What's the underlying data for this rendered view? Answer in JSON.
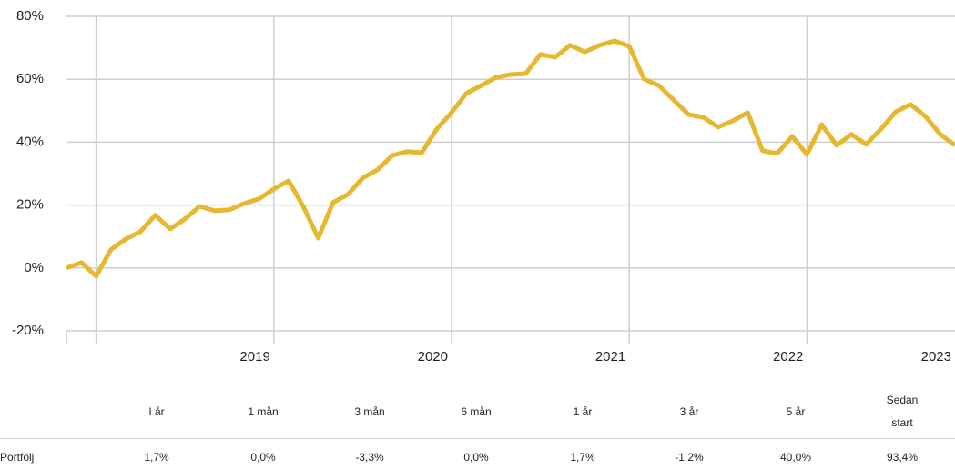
{
  "chart_data": {
    "type": "line",
    "x": [
      2017.833,
      2017.917,
      2018,
      2018.083,
      2018.167,
      2018.25,
      2018.333,
      2018.417,
      2018.5,
      2018.583,
      2018.667,
      2018.75,
      2018.833,
      2018.917,
      2019,
      2019.083,
      2019.167,
      2019.25,
      2019.333,
      2019.417,
      2019.5,
      2019.583,
      2019.667,
      2019.75,
      2019.833,
      2019.917,
      2020,
      2020.083,
      2020.167,
      2020.25,
      2020.333,
      2020.417,
      2020.5,
      2020.583,
      2020.667,
      2020.75,
      2020.833,
      2020.917,
      2021,
      2021.083,
      2021.167,
      2021.25,
      2021.333,
      2021.417,
      2021.5,
      2021.583,
      2021.667,
      2021.75,
      2021.833,
      2021.917,
      2022,
      2022.083,
      2022.167,
      2022.25,
      2022.333,
      2022.417,
      2022.5,
      2022.583,
      2022.667,
      2022.75,
      2022.833
    ],
    "series": [
      {
        "color": "#e6b830",
        "values": [
          0,
          1.7,
          -2.6,
          5.8,
          9.2,
          11.6,
          16.8,
          12.4,
          15.6,
          19.6,
          18.2,
          18.5,
          20.5,
          22,
          25.1,
          27.7,
          19.4,
          9.5,
          20.8,
          23.4,
          28.6,
          31.2,
          35.8,
          37,
          36.7,
          44.2,
          49.4,
          55.5,
          58,
          60.6,
          61.5,
          61.8,
          67.9,
          67,
          70.8,
          68.7,
          70.8,
          72.2,
          70.5,
          60.1,
          58,
          53.4,
          48.8,
          47.9,
          44.8,
          46.8,
          49.4,
          37.3,
          36.4,
          41.9,
          36.1,
          45.6,
          39,
          42.5,
          39.3,
          44.2,
          49.7,
          52,
          48.2,
          42.5,
          39
        ]
      }
    ],
    "xlim": [
      2017.833,
      2022.833
    ],
    "xticks": [
      2019,
      2020,
      2021,
      2022,
      2023
    ],
    "ylim": [
      -20,
      80
    ],
    "yticks": [
      {
        "value": -20,
        "label": "-20%"
      },
      {
        "value": 0,
        "label": "0%"
      },
      {
        "value": 20,
        "label": "20%"
      },
      {
        "value": 40,
        "label": "40%"
      },
      {
        "value": 60,
        "label": "60%"
      },
      {
        "value": 80,
        "label": "80%"
      }
    ],
    "grid": true
  },
  "table": {
    "header": [
      "I år",
      "1 mån",
      "3 mån",
      "6 mån",
      "1 år",
      "3 år",
      "5 år",
      "Sedan start"
    ],
    "rows": [
      [
        "Portfölj",
        "1,7%",
        "0,0%",
        "-3,3%",
        "0,0%",
        "1,7%",
        "-1,2%",
        "40,0%",
        "93,4%"
      ]
    ]
  }
}
